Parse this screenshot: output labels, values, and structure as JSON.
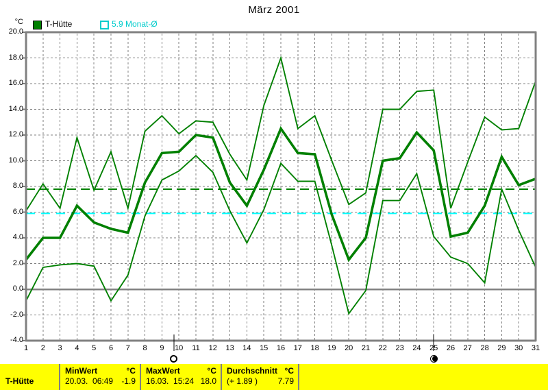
{
  "title": "März 2001",
  "legend": [
    {
      "label": "T-Hütte",
      "swatch": "green-filled-square"
    },
    {
      "label": "5.9 Monat-Ø",
      "swatch": "cyan-outline-square"
    }
  ],
  "y_axis": {
    "unit": "°C",
    "ticks": [
      "20.0",
      "18.0",
      "16.0",
      "14.0",
      "12.0",
      "10.0",
      "8.0",
      "6.0",
      "4.0",
      "2.0",
      "0.0",
      "-2.0",
      "-4.0"
    ]
  },
  "chart_data": {
    "type": "line",
    "title": "März 2001",
    "ylabel": "°C",
    "ylim": [
      -4,
      20
    ],
    "grid": true,
    "x": [
      1,
      2,
      3,
      4,
      5,
      6,
      7,
      8,
      9,
      10,
      11,
      12,
      13,
      14,
      15,
      16,
      17,
      18,
      19,
      20,
      21,
      22,
      23,
      24,
      25,
      26,
      27,
      28,
      29,
      30,
      31
    ],
    "series": [
      {
        "name": "T-Hütte (max)",
        "color": "#008000",
        "emphasis": false,
        "values": [
          6.1,
          8.2,
          6.3,
          11.8,
          7.7,
          10.7,
          6.3,
          12.3,
          13.5,
          12.1,
          13.1,
          13.0,
          10.5,
          8.5,
          14.3,
          18.0,
          12.5,
          13.5,
          10.0,
          6.6,
          7.5,
          14.0,
          14.0,
          15.4,
          15.5,
          6.3,
          9.9,
          13.4,
          12.4,
          12.5,
          16.2
        ]
      },
      {
        "name": "T-Hütte (mean)",
        "color": "#008000",
        "emphasis": true,
        "values": [
          2.3,
          4.0,
          4.0,
          6.5,
          5.2,
          4.7,
          4.4,
          8.3,
          10.6,
          10.7,
          12.0,
          11.8,
          8.3,
          6.5,
          9.3,
          12.5,
          10.6,
          10.5,
          5.8,
          2.3,
          4.0,
          10.0,
          10.2,
          12.2,
          10.8,
          4.1,
          4.4,
          6.5,
          10.3,
          8.1,
          8.6
        ]
      },
      {
        "name": "T-Hütte (min)",
        "color": "#008000",
        "emphasis": false,
        "values": [
          -0.9,
          1.7,
          1.9,
          2.0,
          1.8,
          -0.9,
          1.1,
          5.7,
          8.5,
          9.2,
          10.4,
          9.1,
          6.1,
          3.6,
          6.2,
          9.8,
          8.4,
          8.4,
          3.4,
          -1.9,
          -0.1,
          6.9,
          6.9,
          9.0,
          4.1,
          2.5,
          2.0,
          0.5,
          7.8,
          4.6,
          1.7
        ]
      }
    ],
    "reference_lines": [
      {
        "label": "Durchschnitt",
        "value": 7.79,
        "color": "#008000",
        "style": "dashed"
      },
      {
        "label": "5.9 Monat-Ø",
        "value": 5.9,
        "color": "#00ffff",
        "style": "dashed"
      }
    ]
  },
  "moon_markers": [
    {
      "day": 9.7,
      "symbol": "open-circle-moon"
    },
    {
      "day": 25,
      "symbol": "filled-circle-moon"
    }
  ],
  "status_bar": {
    "series_label": "T-Hütte",
    "cells": [
      {
        "header": "MinWert",
        "unit": "°C",
        "detail": "20.03.  06:49",
        "value": "-1.9"
      },
      {
        "header": "MaxWert",
        "unit": "°C",
        "detail": "16.03.  15:24",
        "value": "18.0"
      },
      {
        "header": "Durchschnitt",
        "unit": "°C",
        "detail": "(+ 1.89 )",
        "value": "7.79"
      }
    ]
  },
  "colors": {
    "series": "#008000",
    "monat_line": "#00ffff",
    "monat_text": "#00cccc",
    "grid": "#808080",
    "frame": "#808080",
    "status_bg": "#ffff00",
    "text": "#000000"
  }
}
